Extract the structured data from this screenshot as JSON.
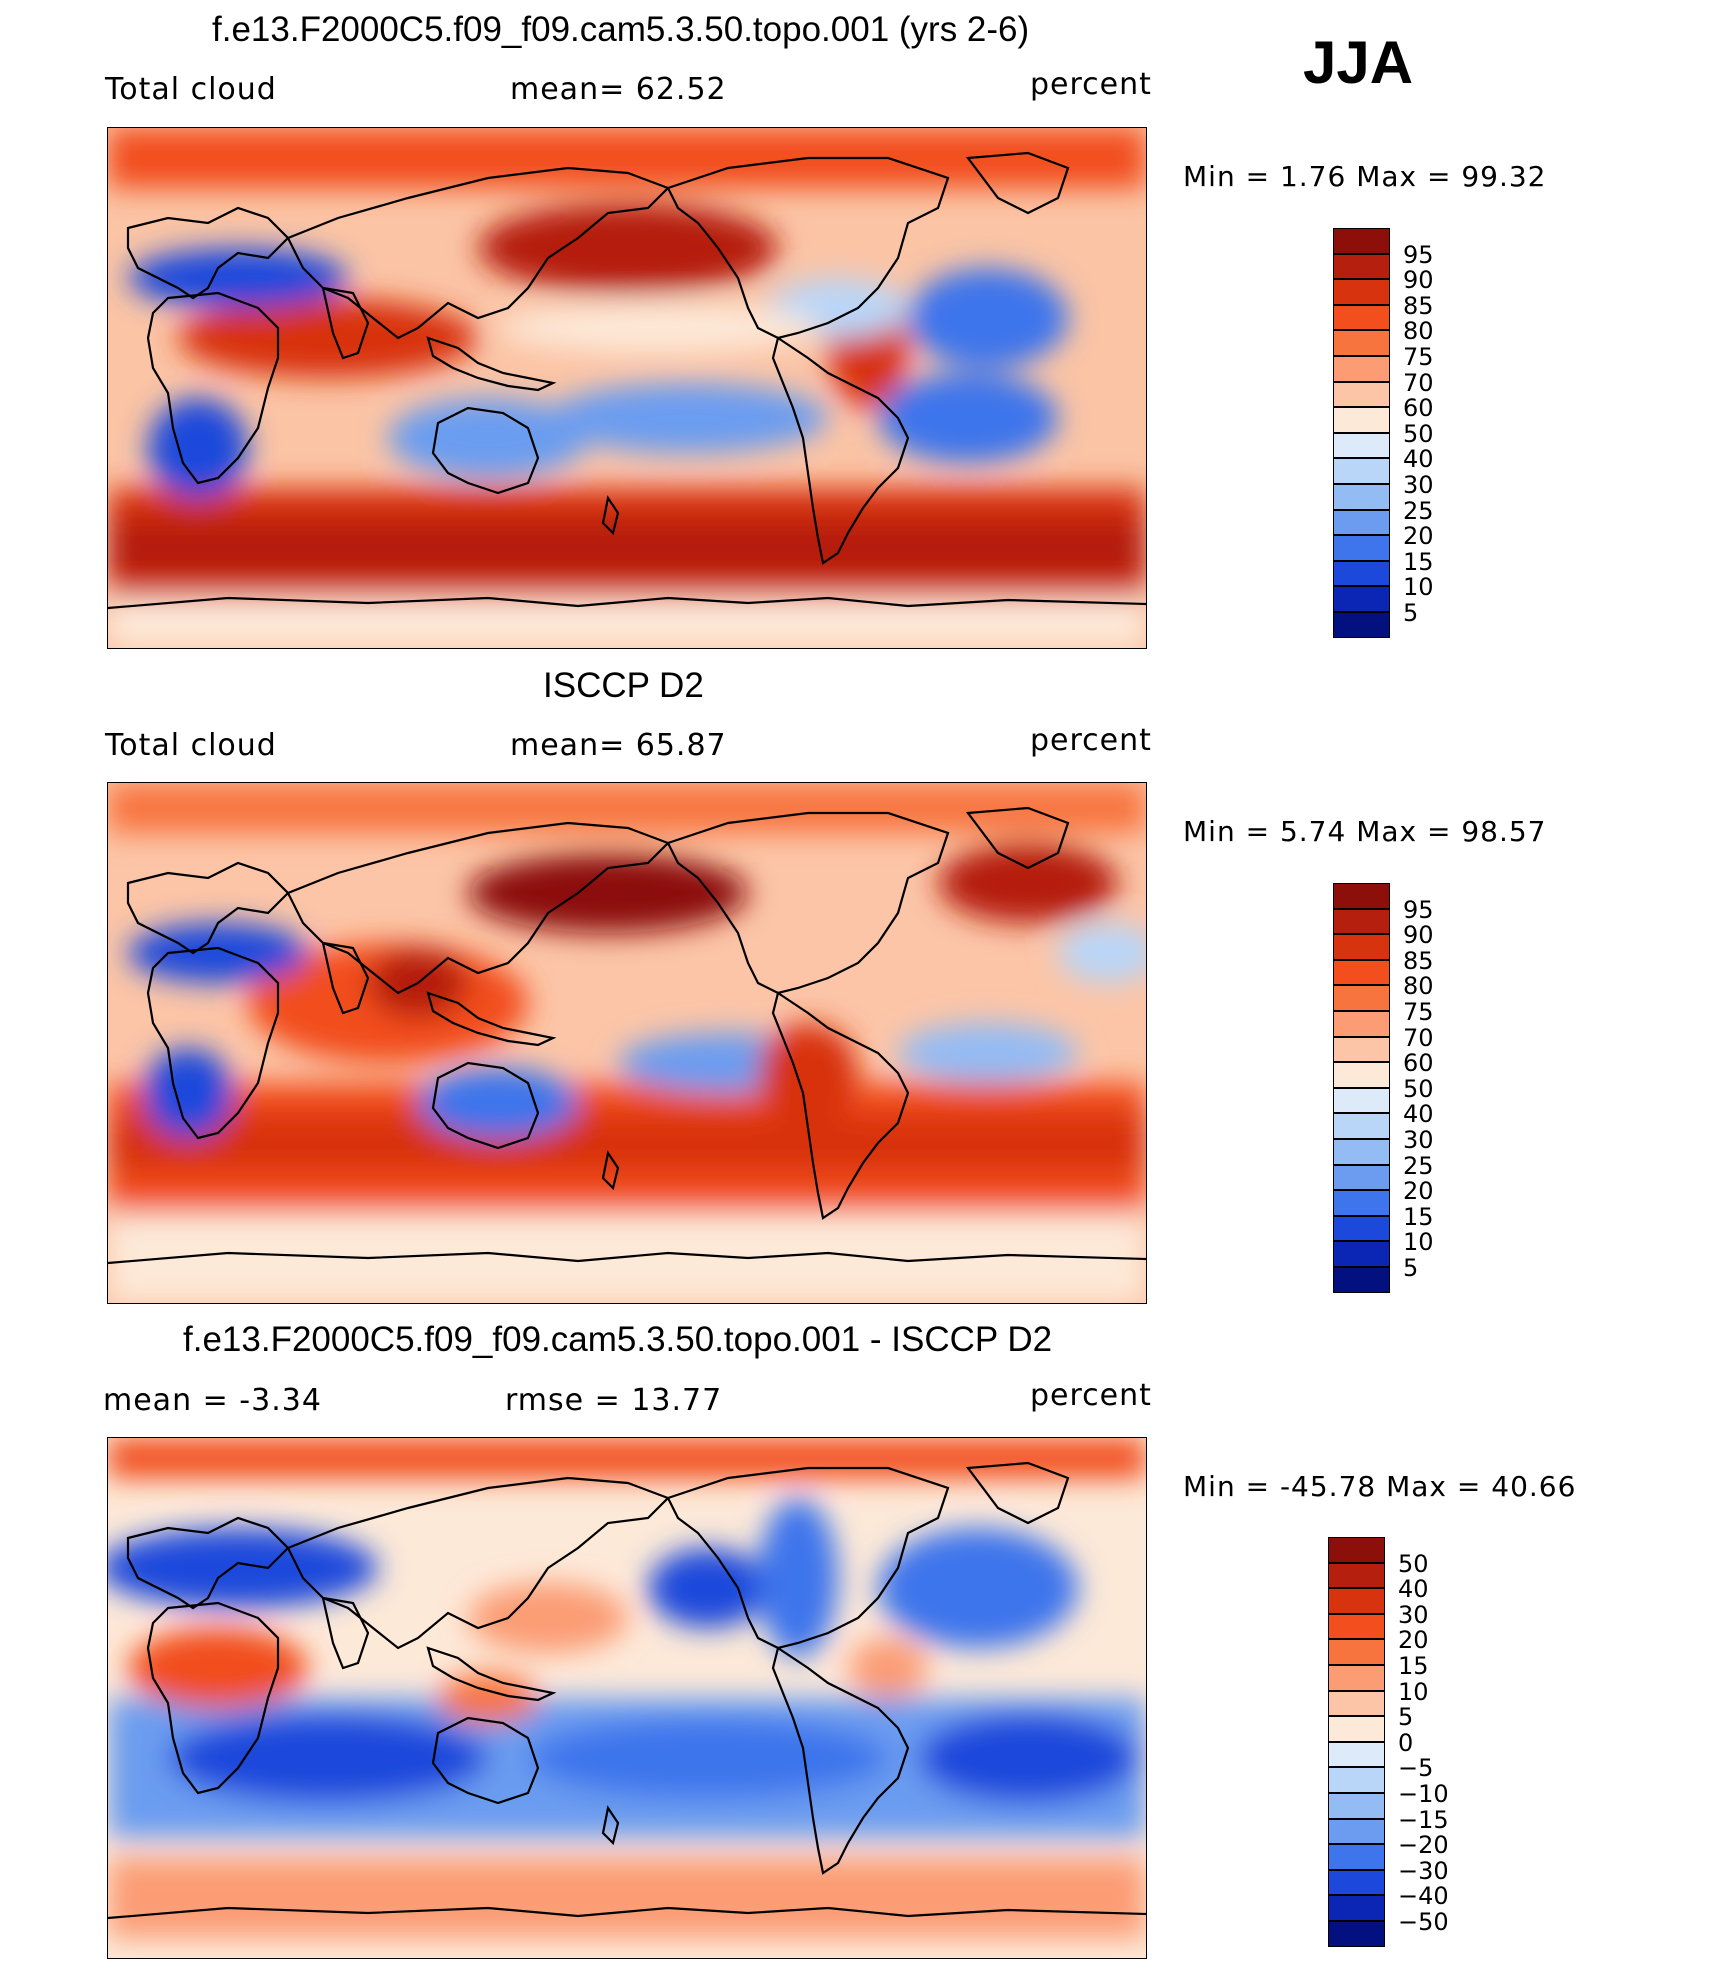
{
  "season": "JJA",
  "panels": [
    {
      "title": "f.e13.F2000C5.f09_f09.cam5.3.50.topo.001 (yrs 2-6)",
      "left_label": "Total cloud",
      "mid_label": "mean=   62.52",
      "units": "percent",
      "minmax": "Min =    1.76  Max =    99.32",
      "map_icon": "world-map-total-cloud-model",
      "colorbar": {
        "labels": [
          "95",
          "90",
          "85",
          "80",
          "75",
          "70",
          "60",
          "50",
          "40",
          "30",
          "25",
          "20",
          "15",
          "10",
          "5"
        ],
        "colors": [
          "#8c0f0a",
          "#b51f0e",
          "#d8330f",
          "#f24e1e",
          "#f8743f",
          "#fb9c74",
          "#fcc5a7",
          "#fde9d8",
          "#dceaf9",
          "#b9d6f8",
          "#93bbf4",
          "#6b9cf0",
          "#3e74ec",
          "#1c49dc",
          "#0b25b4",
          "#03107f"
        ]
      }
    },
    {
      "title": "ISCCP D2",
      "left_label": "Total cloud",
      "mid_label": "mean=   65.87",
      "units": "percent",
      "minmax": "Min =    5.74  Max =    98.57",
      "map_icon": "world-map-total-cloud-isccp",
      "colorbar": {
        "labels": [
          "95",
          "90",
          "85",
          "80",
          "75",
          "70",
          "60",
          "50",
          "40",
          "30",
          "25",
          "20",
          "15",
          "10",
          "5"
        ],
        "colors": [
          "#8c0f0a",
          "#b51f0e",
          "#d8330f",
          "#f24e1e",
          "#f8743f",
          "#fb9c74",
          "#fcc5a7",
          "#fde9d8",
          "#dceaf9",
          "#b9d6f8",
          "#93bbf4",
          "#6b9cf0",
          "#3e74ec",
          "#1c49dc",
          "#0b25b4",
          "#03107f"
        ]
      }
    },
    {
      "title": "f.e13.F2000C5.f09_f09.cam5.3.50.topo.001 - ISCCP D2",
      "left_label": "mean =    -3.34",
      "mid_label": "rmse =    13.77",
      "units": "percent",
      "minmax": "Min = -45.78  Max =    40.66",
      "map_icon": "world-map-total-cloud-difference",
      "colorbar": {
        "labels": [
          "50",
          "40",
          "30",
          "20",
          "15",
          "10",
          "5",
          "0",
          "-5",
          "-10",
          "-15",
          "-20",
          "-30",
          "-40",
          "-50"
        ],
        "colors": [
          "#8c0f0a",
          "#b51f0e",
          "#d8330f",
          "#f24e1e",
          "#f8743f",
          "#fb9c74",
          "#fcc5a7",
          "#fde9d8",
          "#dceaf9",
          "#b9d6f8",
          "#93bbf4",
          "#6b9cf0",
          "#3e74ec",
          "#1c49dc",
          "#0b25b4",
          "#03107f"
        ]
      }
    }
  ]
}
